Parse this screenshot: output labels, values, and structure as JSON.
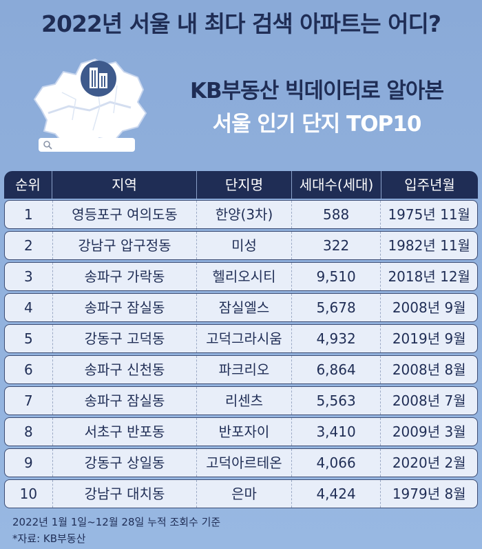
{
  "header": {
    "title": "2022년 서울 내 최다 검색 아파트는 어디?",
    "subtitle_line1": "KB부동산 빅데이터로 알아본",
    "subtitle_line2": "서울 인기 단지 TOP10"
  },
  "illustration": {
    "map_icon": "seoul-map-icon",
    "building_icon": "apartment-building-icon",
    "search_icon": "search-icon",
    "colors": {
      "map": "#ffffff",
      "badge": "#3e5a8c",
      "accent": "#1f2d55"
    }
  },
  "table": {
    "columns": [
      "순위",
      "지역",
      "단지명",
      "세대수(세대)",
      "입주년월"
    ],
    "rows": [
      {
        "rank": "1",
        "region": "영등포구 여의도동",
        "complex": "한양(3차)",
        "households": "588",
        "movein": "1975년 11월"
      },
      {
        "rank": "2",
        "region": "강남구 압구정동",
        "complex": "미성",
        "households": "322",
        "movein": "1982년 11월"
      },
      {
        "rank": "3",
        "region": "송파구 가락동",
        "complex": "헬리오시티",
        "households": "9,510",
        "movein": "2018년 12월"
      },
      {
        "rank": "4",
        "region": "송파구 잠실동",
        "complex": "잠실엘스",
        "households": "5,678",
        "movein": "2008년 9월"
      },
      {
        "rank": "5",
        "region": "강동구 고덕동",
        "complex": "고덕그라시움",
        "households": "4,932",
        "movein": "2019년 9월"
      },
      {
        "rank": "6",
        "region": "송파구 신천동",
        "complex": "파크리오",
        "households": "6,864",
        "movein": "2008년 8월"
      },
      {
        "rank": "7",
        "region": "송파구 잠실동",
        "complex": "리센츠",
        "households": "5,563",
        "movein": "2008년 7월"
      },
      {
        "rank": "8",
        "region": "서초구 반포동",
        "complex": "반포자이",
        "households": "3,410",
        "movein": "2009년 3월"
      },
      {
        "rank": "9",
        "region": "강동구 상일동",
        "complex": "고덕아르테온",
        "households": "4,066",
        "movein": "2020년 2월"
      },
      {
        "rank": "10",
        "region": "강남구 대치동",
        "complex": "은마",
        "households": "4,424",
        "movein": "1979년 8월"
      }
    ]
  },
  "footnotes": {
    "period": "2022년 1월 1일~12월 28일 누적 조회수 기준",
    "source": "*자료: KB부동산"
  }
}
